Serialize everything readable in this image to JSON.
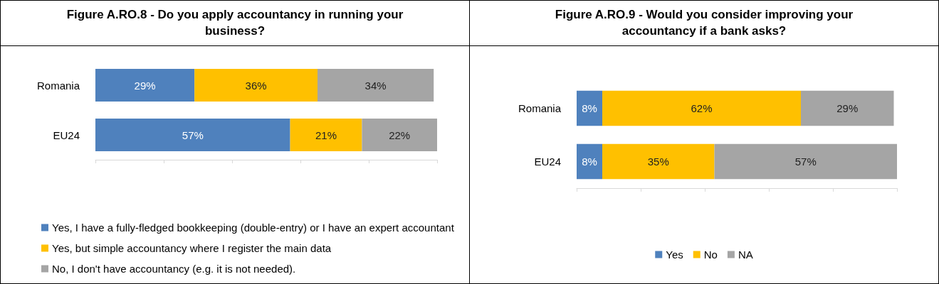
{
  "chart_data": [
    {
      "type": "bar",
      "orientation": "horizontal",
      "stacked": true,
      "title": "Figure A.RO.8 - Do you apply accountancy in running your business?",
      "categories": [
        "Romania",
        "EU24"
      ],
      "series": [
        {
          "name": "Yes, I have a fully-fledged bookkeeping (double-entry) or I have an expert accountant",
          "color": "#4f81bd",
          "values": [
            29,
            57
          ],
          "value_labels": [
            "29%",
            "57%"
          ]
        },
        {
          "name": "Yes, but simple accountancy where I register the main data",
          "color": "#ffc000",
          "values": [
            36,
            21
          ],
          "value_labels": [
            "36%",
            "21%"
          ]
        },
        {
          "name": "No, I don't have accountancy (e.g. it is not needed).",
          "color": "#a5a5a5",
          "values": [
            34,
            22
          ],
          "value_labels": [
            "34%",
            "22%"
          ]
        }
      ],
      "tick_labels": "y",
      "legend": "bottom left"
    },
    {
      "type": "bar",
      "orientation": "horizontal",
      "stacked": true,
      "title": "Figure A.RO.9 - Would you consider improving your accountancy if a bank asks?",
      "categories": [
        "Romania",
        "EU24"
      ],
      "series": [
        {
          "name": "Yes",
          "color": "#4f81bd",
          "values": [
            8,
            8
          ],
          "value_labels": [
            "8%",
            "8%"
          ]
        },
        {
          "name": "No",
          "color": "#ffc000",
          "values": [
            62,
            35
          ],
          "value_labels": [
            "62%",
            "35%"
          ]
        },
        {
          "name": "NA",
          "color": "#a5a5a5",
          "values": [
            29,
            57
          ],
          "value_labels": [
            "29%",
            "57%"
          ]
        }
      ],
      "tick_labels": "y",
      "legend": "bottom"
    }
  ]
}
